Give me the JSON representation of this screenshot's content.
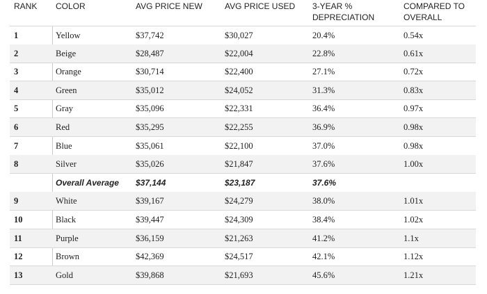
{
  "table": {
    "header": [
      "RANK",
      "COLOR",
      "AVG PRICE NEW",
      "AVG PRICE USED",
      "3-YEAR %\nDEPRECIATION",
      "COMPARED TO\nOVERALL"
    ],
    "rows": [
      [
        "1",
        "Yellow",
        "$37,742",
        "$30,027",
        "20.4%",
        "0.54x"
      ],
      [
        "2",
        "Beige",
        "$28,487",
        "$22,004",
        "22.8%",
        "0.61x"
      ],
      [
        "3",
        "Orange",
        "$30,714",
        "$22,400",
        "27.1%",
        "0.72x"
      ],
      [
        "4",
        "Green",
        "$35,012",
        "$24,052",
        "31.3%",
        "0.83x"
      ],
      [
        "5",
        "Gray",
        "$35,096",
        "$22,331",
        "36.4%",
        "0.97x"
      ],
      [
        "6",
        "Red",
        "$35,295",
        "$22,255",
        "36.9%",
        "0.98x"
      ],
      [
        "7",
        "Blue",
        "$35,061",
        "$22,100",
        "37.0%",
        "0.98x"
      ],
      [
        "8",
        "Silver",
        "$35,026",
        "$21,847",
        "37.6%",
        "1.00x"
      ],
      [
        null,
        "Overall Average",
        "$37,144",
        "$23,187",
        "37.6%"
      ],
      [
        "9",
        "White",
        "$39,167",
        "$24,279",
        "38.0%",
        "1.01x"
      ],
      [
        "10",
        "Black",
        "$39,447",
        "$24,309",
        "38.4%",
        "1.02x"
      ],
      [
        "11",
        "Purple",
        "$36,159",
        "$21,263",
        "41.2%",
        "1.1x"
      ],
      [
        "12",
        "Brown",
        "$42,369",
        "$24,517",
        "42.1%",
        "1.12x"
      ],
      [
        "13",
        "Gold",
        "$39,868",
        "$21,693",
        "45.6%",
        "1.21x"
      ]
    ]
  }
}
